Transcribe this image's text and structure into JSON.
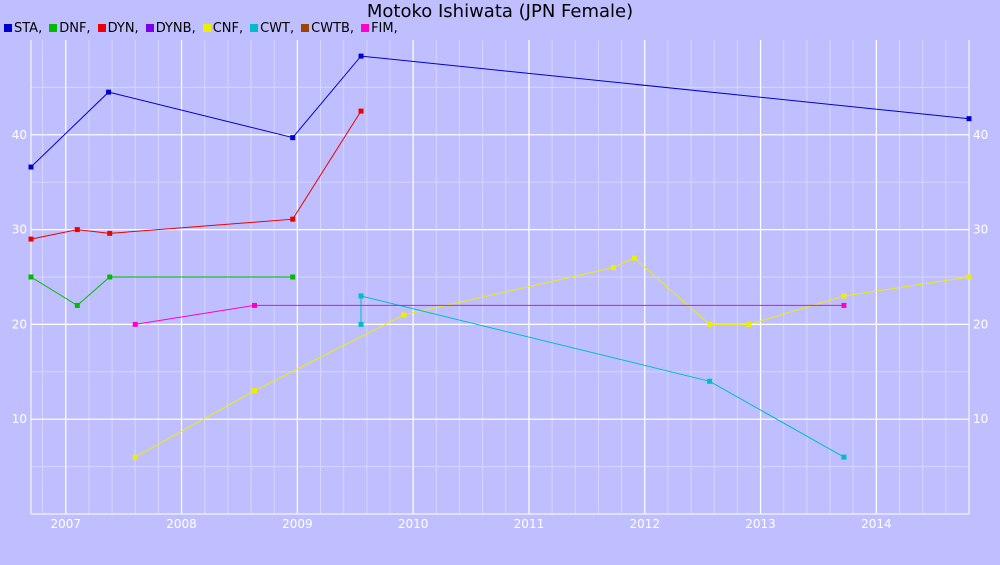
{
  "chart_data": {
    "type": "line",
    "title": "Motoko Ishiwata (JPN Female)",
    "xlabel": "",
    "ylabel": "",
    "xlim": [
      2006.7,
      2014.8
    ],
    "ylim": [
      0,
      50
    ],
    "x_ticks": [
      "2007",
      "2008",
      "2009",
      "2010",
      "2011",
      "2012",
      "2013",
      "2014"
    ],
    "y_ticks": [
      "10",
      "20",
      "30",
      "40"
    ],
    "grid": true,
    "legend_position": "top-left",
    "legend": [
      {
        "label": "STA,",
        "color": "#0000cc"
      },
      {
        "label": "DNF,",
        "color": "#00bb00"
      },
      {
        "label": "DYN,",
        "color": "#ee0000"
      },
      {
        "label": "DYNB,",
        "color": "#7a00ee"
      },
      {
        "label": "CNF,",
        "color": "#eeee00"
      },
      {
        "label": "CWT,",
        "color": "#00bbcc"
      },
      {
        "label": "CWTB,",
        "color": "#994400"
      },
      {
        "label": "FIM,",
        "color": "#ff00cc"
      }
    ],
    "series": [
      {
        "name": "STA,",
        "color": "#0000cc",
        "x": [
          2006.7,
          2007.37,
          2008.96,
          2009.55,
          2014.8
        ],
        "y": [
          36.6,
          44.5,
          39.7,
          48.3,
          41.7
        ]
      },
      {
        "name": "DNF,",
        "color": "#00bb00",
        "x": [
          2006.7,
          2007.1,
          2007.38,
          2008.96
        ],
        "y": [
          25,
          22,
          25,
          25
        ]
      },
      {
        "name": "DYN,",
        "color": "#ee0000",
        "x": [
          2006.7,
          2007.1,
          2007.38,
          2008.96,
          2009.55
        ],
        "y": [
          29,
          30,
          29.6,
          31.1,
          42.5
        ]
      },
      {
        "name": "CNF,",
        "color": "#eeee00",
        "x": [
          2007.6,
          2008.63,
          2009.92,
          2011.73,
          2011.91,
          2012.56,
          2012.9,
          2013.72,
          2014.8
        ],
        "y": [
          6,
          13,
          21,
          26,
          27,
          20,
          20,
          23,
          25
        ]
      },
      {
        "name": "CWT,",
        "color": "#00bbcc",
        "x": [
          2009.55,
          2009.55,
          2012.56,
          2013.72
        ],
        "y": [
          20,
          23,
          14,
          6
        ]
      },
      {
        "name": "FIM,",
        "color": "#ff00cc",
        "x": [
          2007.6,
          2008.63,
          2013.72
        ],
        "y": [
          20,
          22,
          22
        ]
      }
    ]
  }
}
